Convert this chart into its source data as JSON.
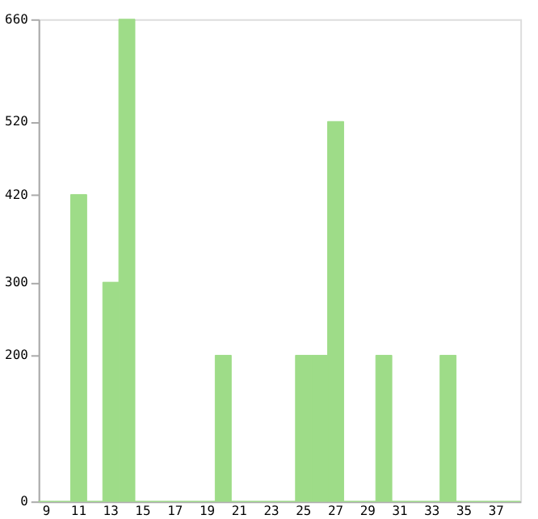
{
  "chart_data": {
    "type": "bar",
    "categories": [
      "9",
      null,
      "11",
      null,
      "13",
      null,
      "15",
      null,
      "17",
      null,
      "19",
      null,
      "21",
      null,
      "23",
      null,
      "25",
      null,
      "27",
      null,
      "29",
      null,
      "31",
      null,
      "33",
      null,
      "35",
      null,
      "37",
      null
    ],
    "values": [
      0,
      0,
      420,
      0,
      300,
      660,
      0,
      0,
      0,
      0,
      0,
      200,
      0,
      0,
      0,
      0,
      200,
      200,
      520,
      0,
      0,
      200,
      0,
      0,
      0,
      200,
      0,
      0,
      0,
      0
    ],
    "color": "#9edc88",
    "ylim": [
      0,
      660
    ],
    "yticks": [
      0,
      200,
      300,
      420,
      520,
      660
    ],
    "grid": false
  }
}
